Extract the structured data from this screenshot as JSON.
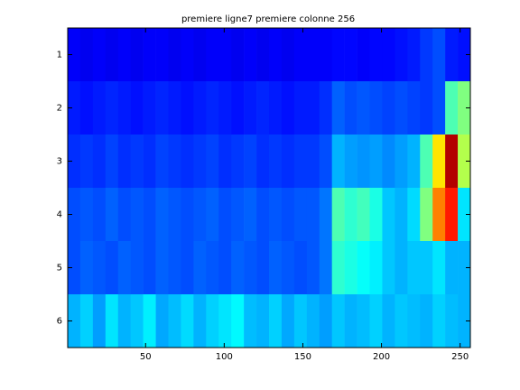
{
  "chart_data": {
    "type": "heatmap",
    "title": "premiere ligne7 premiere colonne 256",
    "colormap": "jet",
    "clim": [
      0,
      1
    ],
    "xlim": [
      0.5,
      256.5
    ],
    "ylim": [
      0.5,
      6.5
    ],
    "y_reversed": true,
    "xticks": [
      50,
      100,
      150,
      200,
      250
    ],
    "yticks": [
      1,
      2,
      3,
      4,
      5,
      6
    ],
    "bins": [
      0.5,
      8.5,
      16.5,
      24.5,
      32.5,
      40.5,
      48.5,
      56.5,
      64.5,
      72.5,
      80.5,
      88.5,
      96.5,
      104.5,
      112.5,
      120.5,
      128.5,
      136.5,
      144.5,
      152.5,
      160.5,
      168.5,
      176.5,
      184.5,
      192.5,
      200.5,
      208.5,
      216.5,
      224.5,
      232.5,
      240.5,
      248.5,
      256.5
    ],
    "y": [
      1,
      2,
      3,
      4,
      5,
      6
    ],
    "z": [
      [
        0.12,
        0.11,
        0.12,
        0.11,
        0.12,
        0.11,
        0.12,
        0.12,
        0.11,
        0.12,
        0.11,
        0.12,
        0.12,
        0.11,
        0.12,
        0.11,
        0.12,
        0.11,
        0.12,
        0.12,
        0.12,
        0.13,
        0.13,
        0.12,
        0.13,
        0.13,
        0.14,
        0.15,
        0.18,
        0.2,
        0.15,
        0.14
      ],
      [
        0.15,
        0.14,
        0.15,
        0.16,
        0.15,
        0.14,
        0.15,
        0.16,
        0.15,
        0.14,
        0.15,
        0.16,
        0.15,
        0.14,
        0.15,
        0.16,
        0.15,
        0.14,
        0.15,
        0.15,
        0.17,
        0.22,
        0.2,
        0.21,
        0.2,
        0.19,
        0.2,
        0.19,
        0.18,
        0.2,
        0.45,
        0.5
      ],
      [
        0.17,
        0.18,
        0.17,
        0.19,
        0.17,
        0.18,
        0.17,
        0.19,
        0.18,
        0.17,
        0.18,
        0.19,
        0.17,
        0.18,
        0.19,
        0.17,
        0.18,
        0.17,
        0.18,
        0.18,
        0.2,
        0.3,
        0.28,
        0.27,
        0.28,
        0.26,
        0.28,
        0.3,
        0.45,
        0.65,
        0.95,
        0.55
      ],
      [
        0.2,
        0.21,
        0.2,
        0.22,
        0.2,
        0.21,
        0.2,
        0.22,
        0.21,
        0.2,
        0.21,
        0.22,
        0.2,
        0.21,
        0.22,
        0.2,
        0.21,
        0.2,
        0.21,
        0.21,
        0.24,
        0.45,
        0.42,
        0.44,
        0.4,
        0.32,
        0.3,
        0.34,
        0.5,
        0.75,
        0.85,
        0.35
      ],
      [
        0.2,
        0.22,
        0.21,
        0.2,
        0.22,
        0.21,
        0.2,
        0.22,
        0.21,
        0.2,
        0.22,
        0.21,
        0.2,
        0.22,
        0.21,
        0.2,
        0.22,
        0.21,
        0.2,
        0.21,
        0.24,
        0.42,
        0.4,
        0.38,
        0.36,
        0.32,
        0.3,
        0.32,
        0.32,
        0.35,
        0.3,
        0.3
      ],
      [
        0.3,
        0.33,
        0.28,
        0.35,
        0.3,
        0.32,
        0.36,
        0.29,
        0.31,
        0.34,
        0.3,
        0.33,
        0.35,
        0.37,
        0.31,
        0.3,
        0.33,
        0.29,
        0.32,
        0.3,
        0.28,
        0.32,
        0.3,
        0.31,
        0.33,
        0.3,
        0.32,
        0.31,
        0.3,
        0.33,
        0.31,
        0.3
      ]
    ]
  }
}
